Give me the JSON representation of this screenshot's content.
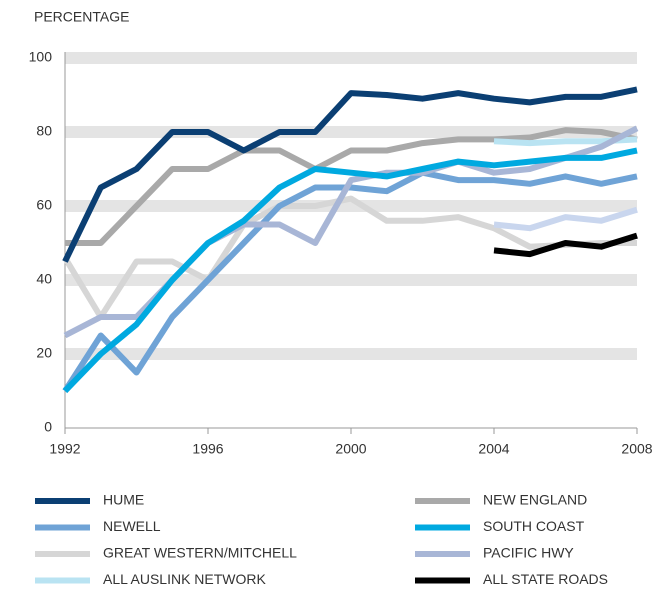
{
  "chart_data": {
    "type": "line",
    "y_label": "PERCENTAGE",
    "x": [
      1992,
      1993,
      1994,
      1995,
      1996,
      1997,
      1998,
      1999,
      2000,
      2001,
      2002,
      2003,
      2004,
      2005,
      2006,
      2007,
      2008
    ],
    "xlim": [
      1992,
      2008
    ],
    "xticks": [
      1992,
      1996,
      2000,
      2004,
      2008
    ],
    "ylim": [
      0,
      100
    ],
    "yticks": [
      0,
      20,
      40,
      60,
      80,
      100
    ],
    "grid": true,
    "series": [
      {
        "name": "HUME",
        "color": "#0b3f73",
        "values": [
          45,
          65,
          70,
          80,
          80,
          75,
          80,
          80,
          90.5,
          90,
          89,
          90.5,
          89,
          88,
          89.5,
          89.5,
          91.5
        ]
      },
      {
        "name": "NEW ENGLAND",
        "color": "#a9a9a9",
        "values": [
          50,
          50,
          60,
          70,
          70,
          75,
          75,
          70,
          75,
          75,
          77,
          78,
          78,
          78.5,
          80.5,
          80,
          78
        ]
      },
      {
        "name": "NEWELL",
        "color": "#6fa3d6",
        "values": [
          10,
          25,
          15,
          30,
          40,
          50,
          60,
          65,
          65,
          64,
          69,
          67,
          67,
          66,
          68,
          66,
          68
        ]
      },
      {
        "name": "SOUTH COAST",
        "color": "#00a9e0",
        "values": [
          10,
          20,
          28,
          40,
          50,
          56,
          65,
          70,
          69,
          68,
          70,
          72,
          71,
          72,
          73,
          73,
          75
        ]
      },
      {
        "name": "GREAT WESTERN/MITCHELL",
        "color": "#d6d6d6",
        "values": [
          46,
          30,
          45,
          45,
          40,
          55,
          60,
          60,
          62,
          56,
          56,
          57,
          54,
          49,
          49.5,
          50,
          50
        ]
      },
      {
        "name": "PACIFIC HWY",
        "color": "#a8b6d6",
        "values": [
          25,
          30,
          30,
          40,
          50,
          55,
          55,
          50,
          67,
          69,
          69,
          72,
          69,
          70,
          73,
          76,
          81
        ]
      },
      {
        "name": "ALL AUSLINK NETWORK",
        "color": "#b9e3f2",
        "values": [
          null,
          null,
          null,
          null,
          null,
          null,
          null,
          null,
          null,
          null,
          null,
          null,
          77.5,
          77,
          77.5,
          77.5,
          78
        ]
      },
      {
        "name": "ALL STATE ROADS",
        "color": "#000000",
        "values": [
          null,
          null,
          null,
          null,
          null,
          null,
          null,
          null,
          null,
          null,
          null,
          null,
          48,
          47,
          50,
          49,
          52
        ]
      },
      {
        "color": "#c9d6ee",
        "values": [
          null,
          null,
          null,
          null,
          null,
          null,
          null,
          null,
          null,
          null,
          null,
          null,
          55,
          54,
          57,
          56,
          59
        ]
      }
    ]
  }
}
